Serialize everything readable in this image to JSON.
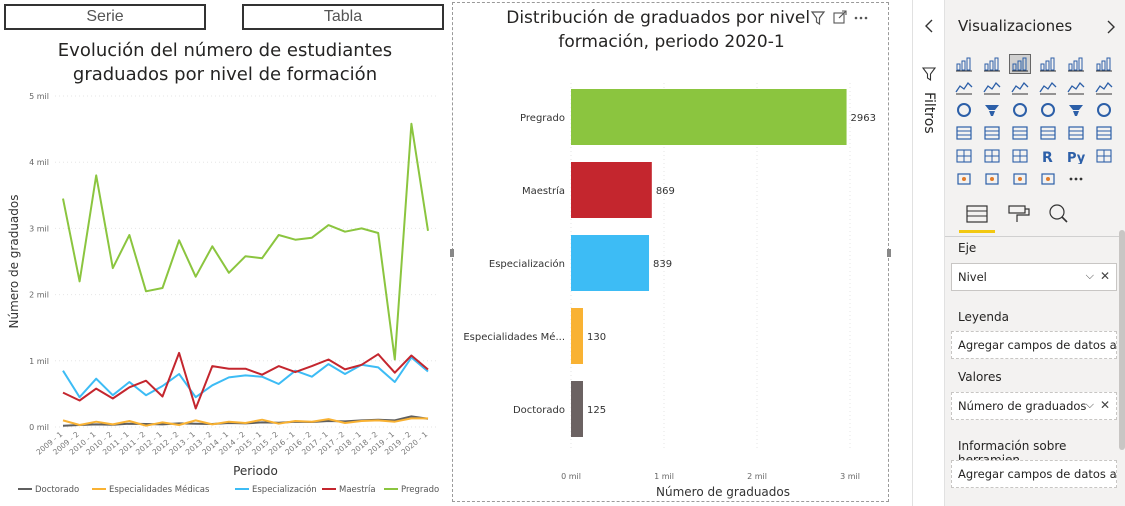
{
  "tabs": {
    "serie": "Serie",
    "tabla": "Tabla"
  },
  "line_chart": {
    "title_line1": "Evolución del número de estudiantes",
    "title_line2": "graduados por nivel de formación",
    "xlabel": "Periodo",
    "ylabel": "Número de graduados",
    "yticks": [
      "0 mil",
      "1 mil",
      "2 mil",
      "3 mil",
      "4 mil",
      "5 mil"
    ],
    "legend": [
      "Doctorado",
      "Especialidades Médicas",
      "Especialización",
      "Maestría",
      "Pregrado"
    ]
  },
  "bar_chart": {
    "title_line1": "Distribución de graduados por nivel de",
    "title_line2": "formación, periodo 2020-1",
    "xlabel": "Número de graduados",
    "xticks": [
      "0 mil",
      "1 mil",
      "2 mil",
      "3 mil"
    ],
    "category_labels": [
      "Pregrado",
      "Maestría",
      "Especialización",
      "Especialidades Mé...",
      "Doctorado"
    ],
    "value_labels": [
      "2963",
      "869",
      "839",
      "130",
      "125"
    ]
  },
  "chart_data": [
    {
      "type": "line",
      "title": "Evolución del número de estudiantes graduados por nivel de formación",
      "xlabel": "Periodo",
      "ylabel": "Número de graduados",
      "ylim": [
        0,
        5000
      ],
      "x": [
        "2009 - 1",
        "2009 - 2",
        "2010 - 1",
        "2010 - 2",
        "2011 - 1",
        "2011 - 2",
        "2012 - 1",
        "2012 - 2",
        "2013 - 1",
        "2013 - 2",
        "2014 - 1",
        "2014 - 2",
        "2015 - 1",
        "2015 - 2",
        "2016 - 1",
        "2016 - 2",
        "2017 - 1",
        "2017 - 2",
        "2018 - 1",
        "2018 - 2",
        "2019 - 1",
        "2019 - 2",
        "2020 - 1"
      ],
      "series": [
        {
          "name": "Doctorado",
          "color": "#5f5f5f",
          "values": [
            20,
            30,
            40,
            35,
            50,
            45,
            40,
            55,
            50,
            45,
            60,
            55,
            70,
            65,
            80,
            75,
            90,
            85,
            100,
            110,
            100,
            160,
            125
          ]
        },
        {
          "name": "Especialidades Médicas",
          "color": "#f9b233",
          "values": [
            100,
            30,
            80,
            40,
            90,
            20,
            70,
            30,
            100,
            40,
            80,
            60,
            110,
            50,
            90,
            80,
            120,
            60,
            90,
            100,
            80,
            130,
            130
          ]
        },
        {
          "name": "Especialización",
          "color": "#3dbcf5",
          "values": [
            850,
            450,
            730,
            480,
            680,
            480,
            620,
            800,
            450,
            630,
            750,
            780,
            760,
            650,
            850,
            760,
            950,
            800,
            940,
            900,
            680,
            1050,
            839
          ]
        },
        {
          "name": "Maestría",
          "color": "#c4262e",
          "values": [
            520,
            400,
            580,
            430,
            600,
            700,
            460,
            1120,
            280,
            920,
            880,
            880,
            790,
            920,
            830,
            920,
            1020,
            870,
            940,
            1100,
            820,
            1080,
            869
          ]
        },
        {
          "name": "Pregrado",
          "color": "#8bc53f",
          "values": [
            3450,
            2200,
            3800,
            2400,
            2900,
            2050,
            2100,
            2820,
            2270,
            2730,
            2330,
            2580,
            2550,
            2900,
            2830,
            2860,
            3050,
            2950,
            3000,
            2930,
            1020,
            4580,
            2963
          ]
        }
      ],
      "legend_position": "bottom"
    },
    {
      "type": "bar",
      "orientation": "horizontal",
      "title": "Distribución de graduados por nivel de formación, periodo 2020-1",
      "xlabel": "Número de graduados",
      "xlim": [
        0,
        3000
      ],
      "categories": [
        "Pregrado",
        "Maestría",
        "Especialización",
        "Especialidades Médicas",
        "Doctorado"
      ],
      "values": [
        2963,
        869,
        839,
        130,
        125
      ],
      "colors": [
        "#8bc53f",
        "#c4262e",
        "#3dbcf5",
        "#f9b233",
        "#6b6262"
      ]
    }
  ],
  "filters": {
    "label": "Filtros"
  },
  "visualizations": {
    "title": "Visualizaciones",
    "eje_label": "Eje",
    "eje_value": "Nivel",
    "leyenda_label": "Leyenda",
    "leyenda_placeholder": "Agregar campos de datos a...",
    "valores_label": "Valores",
    "valores_value": "Número de graduados",
    "tooltips_label": "Información sobre herramien...",
    "tooltips_placeholder": "Agregar campos de datos a...",
    "icons": [
      "stacked-bar-icon",
      "stacked-column-icon",
      "clustered-bar-icon",
      "clustered-column-icon",
      "100-bar-icon",
      "100-column-icon",
      "line-chart-icon",
      "area-chart-icon",
      "stacked-area-icon",
      "line-column-icon",
      "line-clustered-icon",
      "ribbon-chart-icon",
      "waterfall-icon",
      "funnel-icon",
      "scatter-icon",
      "pie-icon",
      "donut-icon",
      "treemap-icon",
      "map-icon",
      "filled-map-icon",
      "gauge-icon",
      "card-icon",
      "multirow-card-icon",
      "kpi-icon",
      "slicer-icon",
      "table-icon",
      "matrix-icon",
      "r-visual-icon",
      "python-visual-icon",
      "key-influencers-icon",
      "decomposition-tree-icon",
      "qa-icon",
      "smart-narrative-icon",
      "paginated-icon",
      "more-icon"
    ]
  }
}
